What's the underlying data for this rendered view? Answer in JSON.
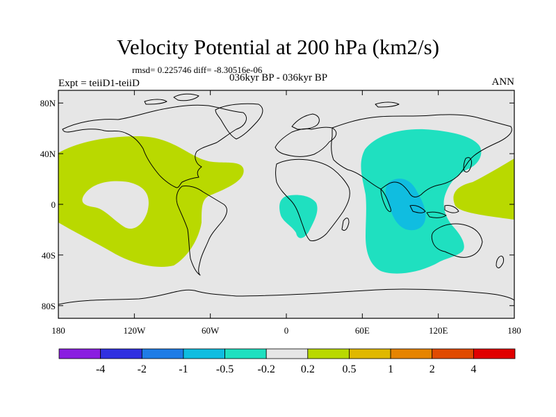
{
  "header": {
    "title": "Velocity Potential at 200 hPa (km2/s)",
    "stats": "rmsd= 0.225746 diff= -8.30516e-06",
    "experiment": "Expt = teiiD1-teiiD",
    "period": "036kyr BP - 036kyr BP",
    "season": "ANN"
  },
  "map": {
    "projection": "cylindrical-equidistant",
    "lon_range": [
      -180,
      180
    ],
    "lat_range": [
      -90,
      90
    ],
    "lat_ticks": [
      {
        "value": 80,
        "label": "80N"
      },
      {
        "value": 40,
        "label": "40N"
      },
      {
        "value": 0,
        "label": "0"
      },
      {
        "value": -40,
        "label": "40S"
      },
      {
        "value": -80,
        "label": "80S"
      }
    ],
    "lon_ticks": [
      {
        "value": -180,
        "label": "180"
      },
      {
        "value": -120,
        "label": "120W"
      },
      {
        "value": -60,
        "label": "60W"
      },
      {
        "value": 0,
        "label": "0"
      },
      {
        "value": 60,
        "label": "60E"
      },
      {
        "value": 120,
        "label": "120E"
      },
      {
        "value": 180,
        "label": "180"
      }
    ],
    "colors": {
      "background_field": "#e6e6e6",
      "positive_0_2_to_0_5": "#b9d900",
      "negative_0_5_to_0_2": "#1fe0c0",
      "negative_1_to_0_5": "#10bde0",
      "coastline": "#000000"
    }
  },
  "colorbar": {
    "colors": [
      "#8a1ee0",
      "#3030e0",
      "#1e7ce6",
      "#10bde0",
      "#1fe0c0",
      "#e6e6e6",
      "#b9d900",
      "#e0b800",
      "#e68400",
      "#e04a00",
      "#e00000"
    ],
    "labels": [
      "-4",
      "-2",
      "-1",
      "-0.5",
      "-0.2",
      "0.2",
      "0.5",
      "1",
      "2",
      "4"
    ]
  }
}
